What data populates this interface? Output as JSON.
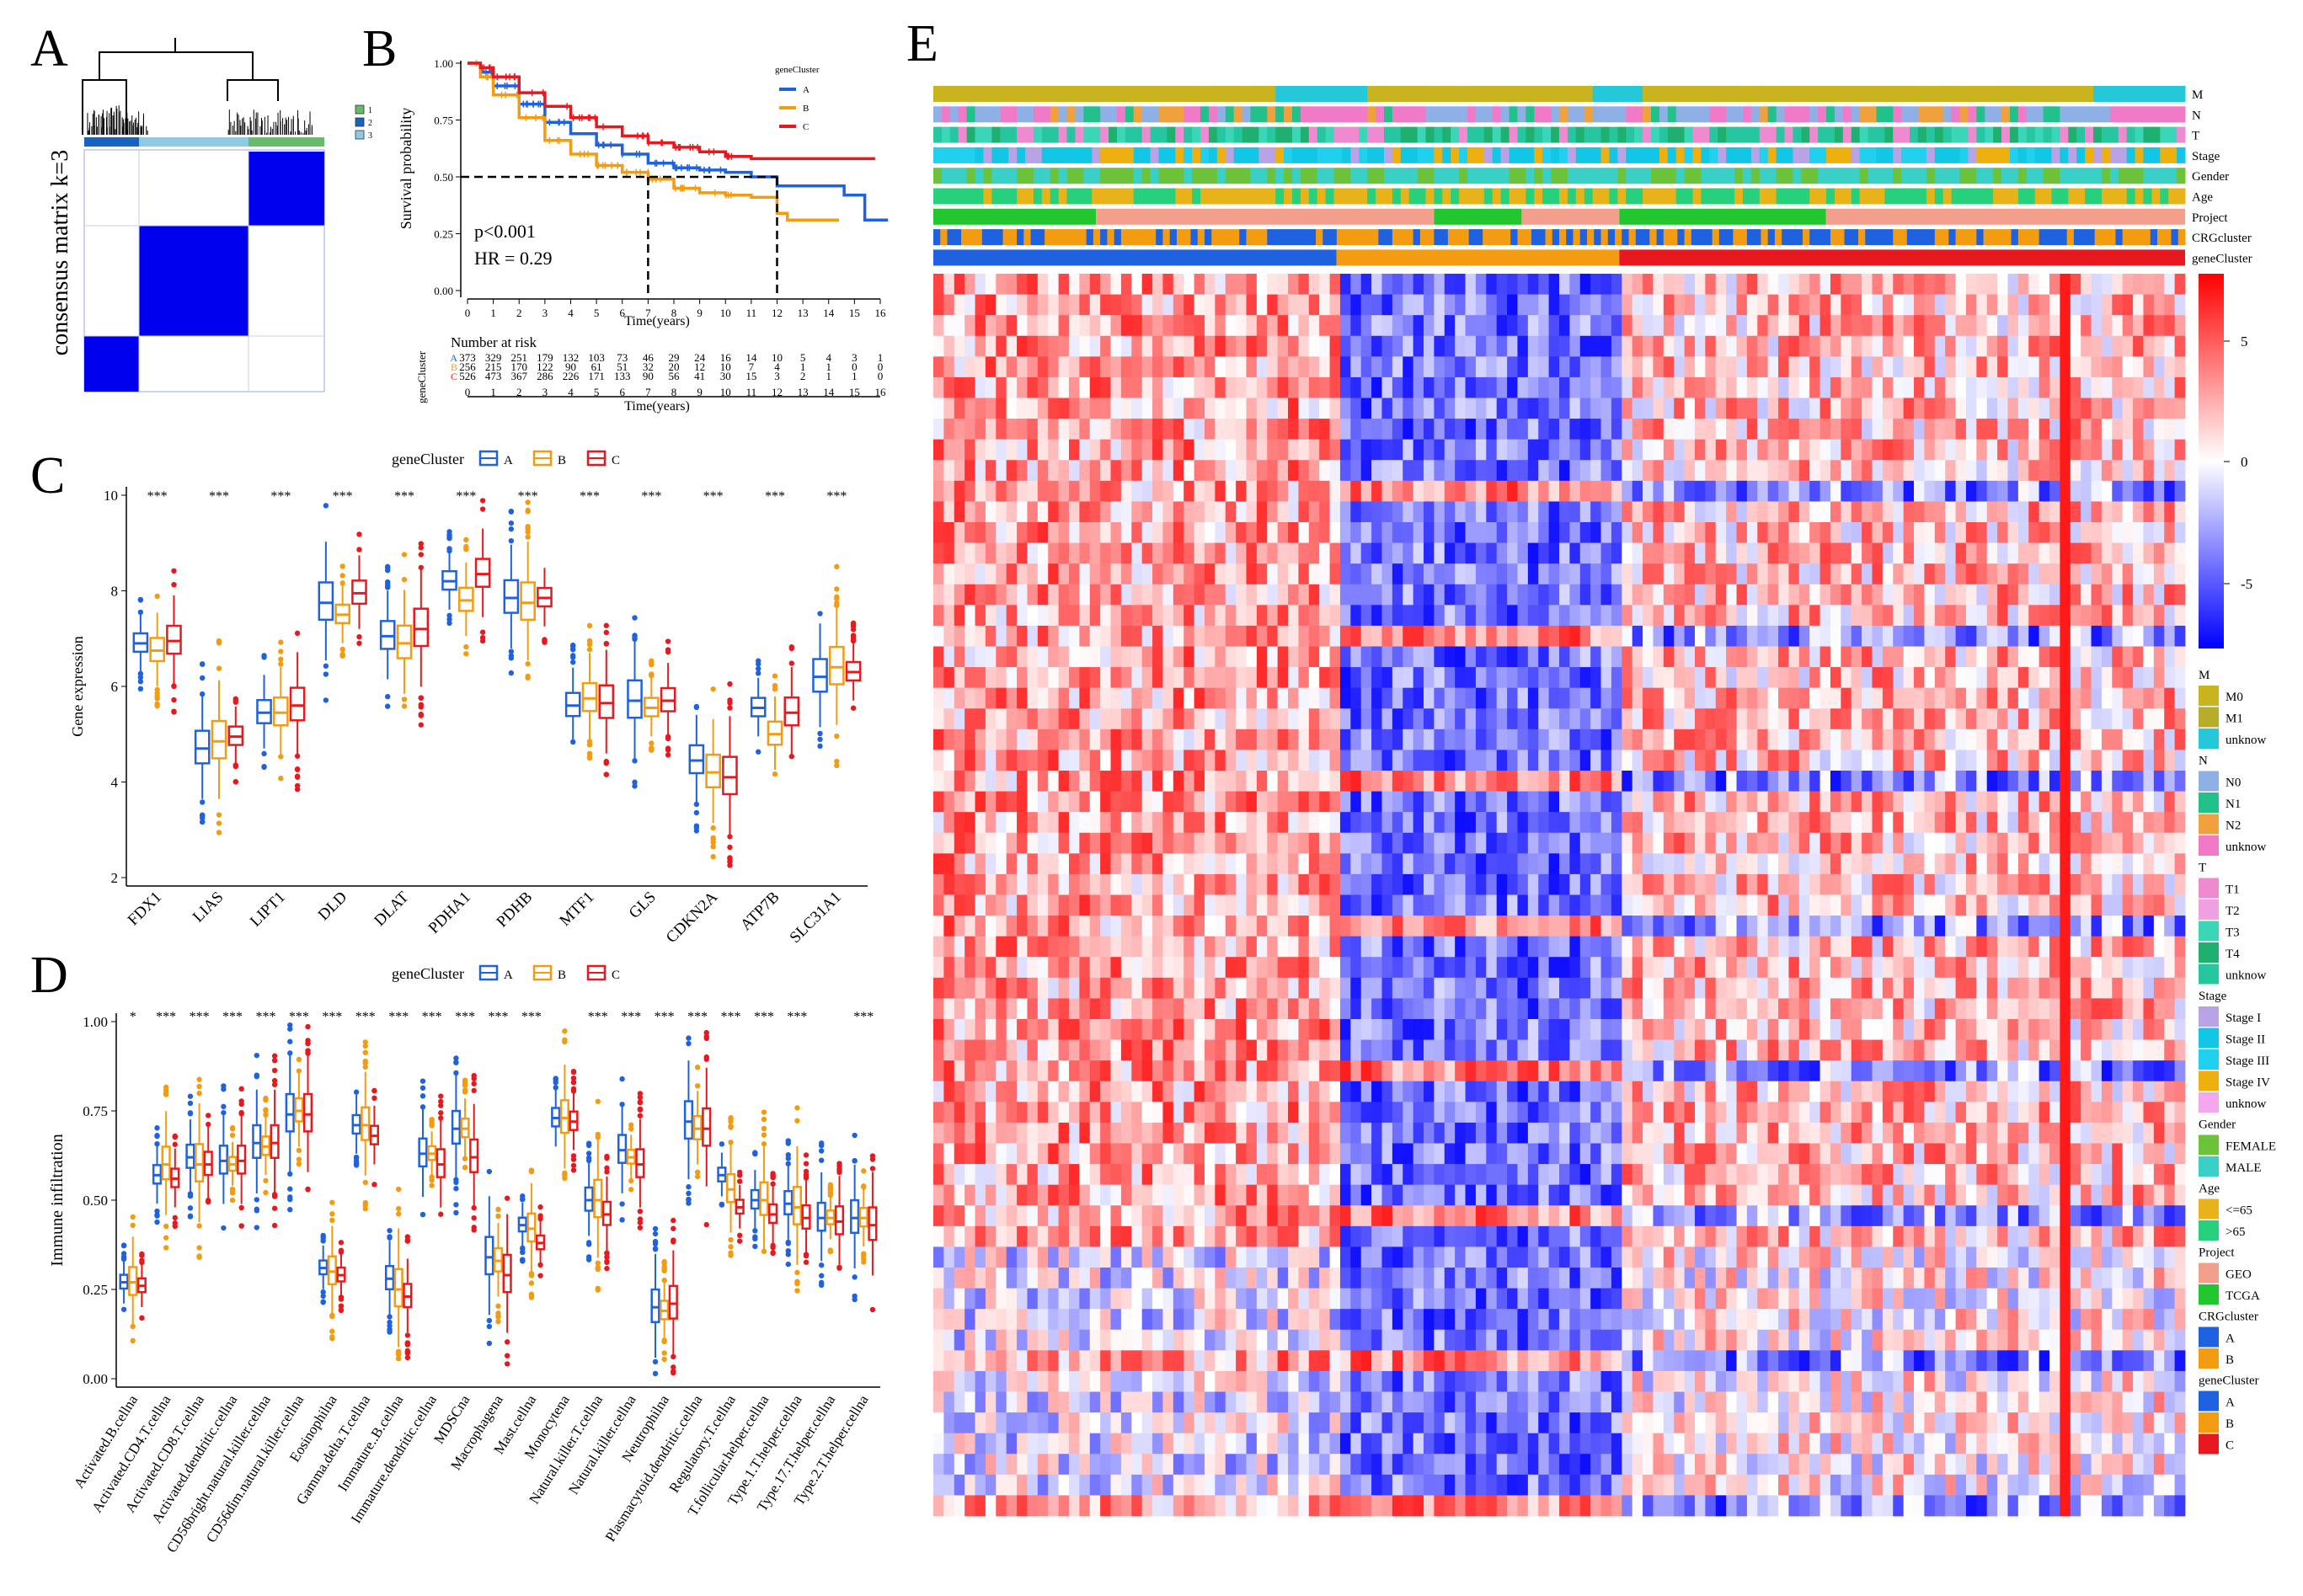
{
  "panels": {
    "A": {
      "letter": "A",
      "ylabel": "consensus matrix k=3",
      "legend": [
        "1",
        "2",
        "3"
      ],
      "colors": {
        "c1": "#66bb6a",
        "c2": "#1565c0",
        "c3": "#8ccbe3",
        "block": "#0000ee"
      }
    },
    "B": {
      "letter": "B",
      "legend_title": "geneCluster",
      "legend": [
        {
          "name": "A",
          "color": "#1f62e0"
        },
        {
          "name": "B",
          "color": "#f39c12"
        },
        {
          "name": "C",
          "color": "#e8191e"
        }
      ],
      "ylabel": "Survival probability",
      "xlabel": "Time(years)",
      "pvalue": "p<0.001",
      "hr": "HR = 0.29",
      "yticks": [
        "0.00",
        "0.25",
        "0.50",
        "0.75",
        "1.00"
      ],
      "xticks": [
        "0",
        "1",
        "2",
        "3",
        "4",
        "5",
        "6",
        "7",
        "8",
        "9",
        "10",
        "11",
        "12",
        "13",
        "14",
        "15",
        "16"
      ],
      "risk_title": "Number at risk",
      "risk_ylabel": "geneCluster",
      "risk_xlabel": "Time(years)",
      "risk_rows": [
        {
          "name": "A",
          "values": [
            "373",
            "329",
            "251",
            "179",
            "132",
            "103",
            "73",
            "46",
            "29",
            "24",
            "16",
            "14",
            "10",
            "5",
            "4",
            "3",
            "1"
          ]
        },
        {
          "name": "B",
          "values": [
            "256",
            "215",
            "170",
            "122",
            "90",
            "61",
            "51",
            "32",
            "20",
            "12",
            "10",
            "7",
            "4",
            "1",
            "1",
            "0",
            "0"
          ]
        },
        {
          "name": "C",
          "values": [
            "526",
            "473",
            "367",
            "286",
            "226",
            "171",
            "133",
            "90",
            "56",
            "41",
            "30",
            "15",
            "3",
            "2",
            "1",
            "1",
            "0"
          ]
        }
      ],
      "median_times": [
        7,
        12
      ]
    },
    "C": {
      "letter": "C",
      "legend_title": "geneCluster",
      "legend": [
        "A",
        "B",
        "C"
      ],
      "ylabel": "Gene expression",
      "yticks": [
        "2",
        "4",
        "6",
        "8",
        "10"
      ],
      "genes": [
        "FDX1",
        "LIAS",
        "LIPT1",
        "DLD",
        "DLAT",
        "PDHA1",
        "PDHB",
        "MTF1",
        "GLS",
        "CDKN2A",
        "ATP7B",
        "SLC31A1"
      ],
      "sig": [
        "***",
        "***",
        "***",
        "***",
        "***",
        "***",
        "***",
        "***",
        "***",
        "***",
        "***",
        "***"
      ]
    },
    "D": {
      "letter": "D",
      "legend_title": "geneCluster",
      "legend": [
        "A",
        "B",
        "C"
      ],
      "ylabel": "Immune infiltration",
      "yticks": [
        "0.00",
        "0.25",
        "0.50",
        "0.75",
        "1.00"
      ],
      "cells": [
        "Activated.B.cellna",
        "Activated.CD4.T.cellna",
        "Activated.CD8.T.cellna",
        "Activated.dendritic.cellna",
        "CD56bright.natural.killer.cellna",
        "CD56dim.natural.killer.cellna",
        "Eosinophilna",
        "Gamma.delta.T.cellna",
        "Immature..B.cellna",
        "Immature.dendritic.cellna",
        "MDSCna",
        "Macrophagena",
        "Mast.cellna",
        "Monocytena",
        "Natural.killer.T.cellna",
        "Natural.killer.cellna",
        "Neutrophilna",
        "Plasmacytoid.dendritic.cellna",
        "Regulatory.T.cellna",
        "T.follicular.helper.cellna",
        "Type.1.T.helper.cellna",
        "Type.17.T.helper.cellna",
        "Type.2.T.helper.cellna"
      ],
      "sig": [
        "*",
        "***",
        "***",
        "***",
        "***",
        "***",
        "***",
        "***",
        "***",
        "***",
        "***",
        "***",
        "***",
        "",
        "***",
        "***",
        "***",
        "***",
        "***",
        "***",
        "***",
        "",
        "***"
      ]
    },
    "E": {
      "letter": "E",
      "tracks": [
        "M",
        "N",
        "T",
        "Stage",
        "Gender",
        "Age",
        "Project",
        "CRGcluster",
        "geneCluster"
      ],
      "scale_ticks": [
        "5",
        "0",
        "-5"
      ],
      "legend_groups": [
        {
          "title": "M",
          "items": [
            {
              "label": "M0",
              "color": "#c9b41f"
            },
            {
              "label": "M1",
              "color": "#b8ad2a"
            },
            {
              "label": "unknow",
              "color": "#25c8d8"
            }
          ]
        },
        {
          "title": "N",
          "items": [
            {
              "label": "N0",
              "color": "#8fb0e6"
            },
            {
              "label": "N1",
              "color": "#22c08a"
            },
            {
              "label": "N2",
              "color": "#f0a03c"
            },
            {
              "label": "unknow",
              "color": "#f07ac8"
            }
          ]
        },
        {
          "title": "T",
          "items": [
            {
              "label": "T1",
              "color": "#f08ad0"
            },
            {
              "label": "T2",
              "color": "#f0a0e0"
            },
            {
              "label": "T3",
              "color": "#3bd6b8"
            },
            {
              "label": "T4",
              "color": "#1fb070"
            },
            {
              "label": "unknow",
              "color": "#26c6a0"
            }
          ]
        },
        {
          "title": "Stage",
          "items": [
            {
              "label": "Stage I",
              "color": "#b7a3e6"
            },
            {
              "label": "Stage II",
              "color": "#12c6e6"
            },
            {
              "label": "Stage III",
              "color": "#20d0ee"
            },
            {
              "label": "Stage IV",
              "color": "#eeb00e"
            },
            {
              "label": "unknow",
              "color": "#f4a6ee"
            }
          ]
        },
        {
          "title": "Gender",
          "items": [
            {
              "label": "FEMALE",
              "color": "#6cc33a"
            },
            {
              "label": "MALE",
              "color": "#3ad0c8"
            }
          ]
        },
        {
          "title": "Age",
          "items": [
            {
              "label": "<=65",
              "color": "#e8b318"
            },
            {
              "label": ">65",
              "color": "#27d07c"
            }
          ]
        },
        {
          "title": "Project",
          "items": [
            {
              "label": "GEO",
              "color": "#f2a08c"
            },
            {
              "label": "TCGA",
              "color": "#22c62e"
            }
          ]
        },
        {
          "title": "CRGcluster",
          "items": [
            {
              "label": "A",
              "color": "#1f62e0"
            },
            {
              "label": "B",
              "color": "#f39c12"
            }
          ]
        },
        {
          "title": "geneCluster",
          "items": [
            {
              "label": "A",
              "color": "#1f62e0"
            },
            {
              "label": "B",
              "color": "#f39c12"
            },
            {
              "label": "C",
              "color": "#e8191e"
            }
          ]
        }
      ]
    }
  }
}
